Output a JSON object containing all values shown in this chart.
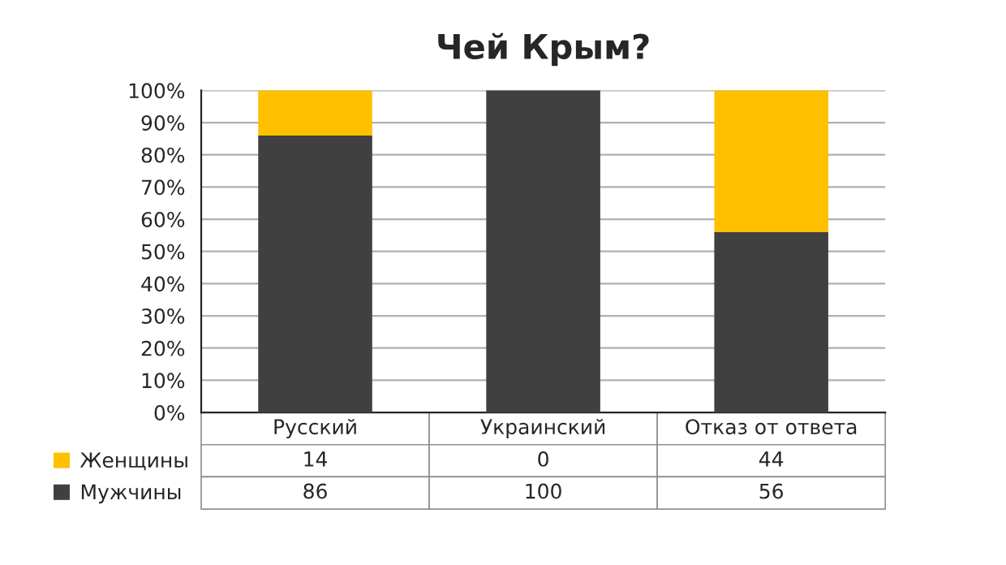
{
  "chart_data": {
    "type": "bar",
    "title": "Чей Крым?",
    "stacked": true,
    "data_labels": true,
    "grid": "y",
    "legend": "bottom left",
    "categories": [
      "Русский",
      "Украинский",
      "Отказ от ответа"
    ],
    "series": [
      {
        "name": "Мужчины",
        "color": "#404040",
        "values": [
          86,
          100,
          56
        ]
      },
      {
        "name": "Женщины",
        "color": "#ffc000",
        "values": [
          14,
          0,
          44
        ]
      }
    ],
    "ylim": [
      0,
      100
    ],
    "yticks": [
      {
        "value": 0,
        "label": "0%"
      },
      {
        "value": 10,
        "label": "10%"
      },
      {
        "value": 20,
        "label": "20%"
      },
      {
        "value": 30,
        "label": "30%"
      },
      {
        "value": 40,
        "label": "40%"
      },
      {
        "value": 50,
        "label": "50%"
      },
      {
        "value": 60,
        "label": "60%"
      },
      {
        "value": 70,
        "label": "70%"
      },
      {
        "value": 80,
        "label": "80%"
      },
      {
        "value": 90,
        "label": "90%"
      },
      {
        "value": 100,
        "label": "100%"
      }
    ]
  }
}
